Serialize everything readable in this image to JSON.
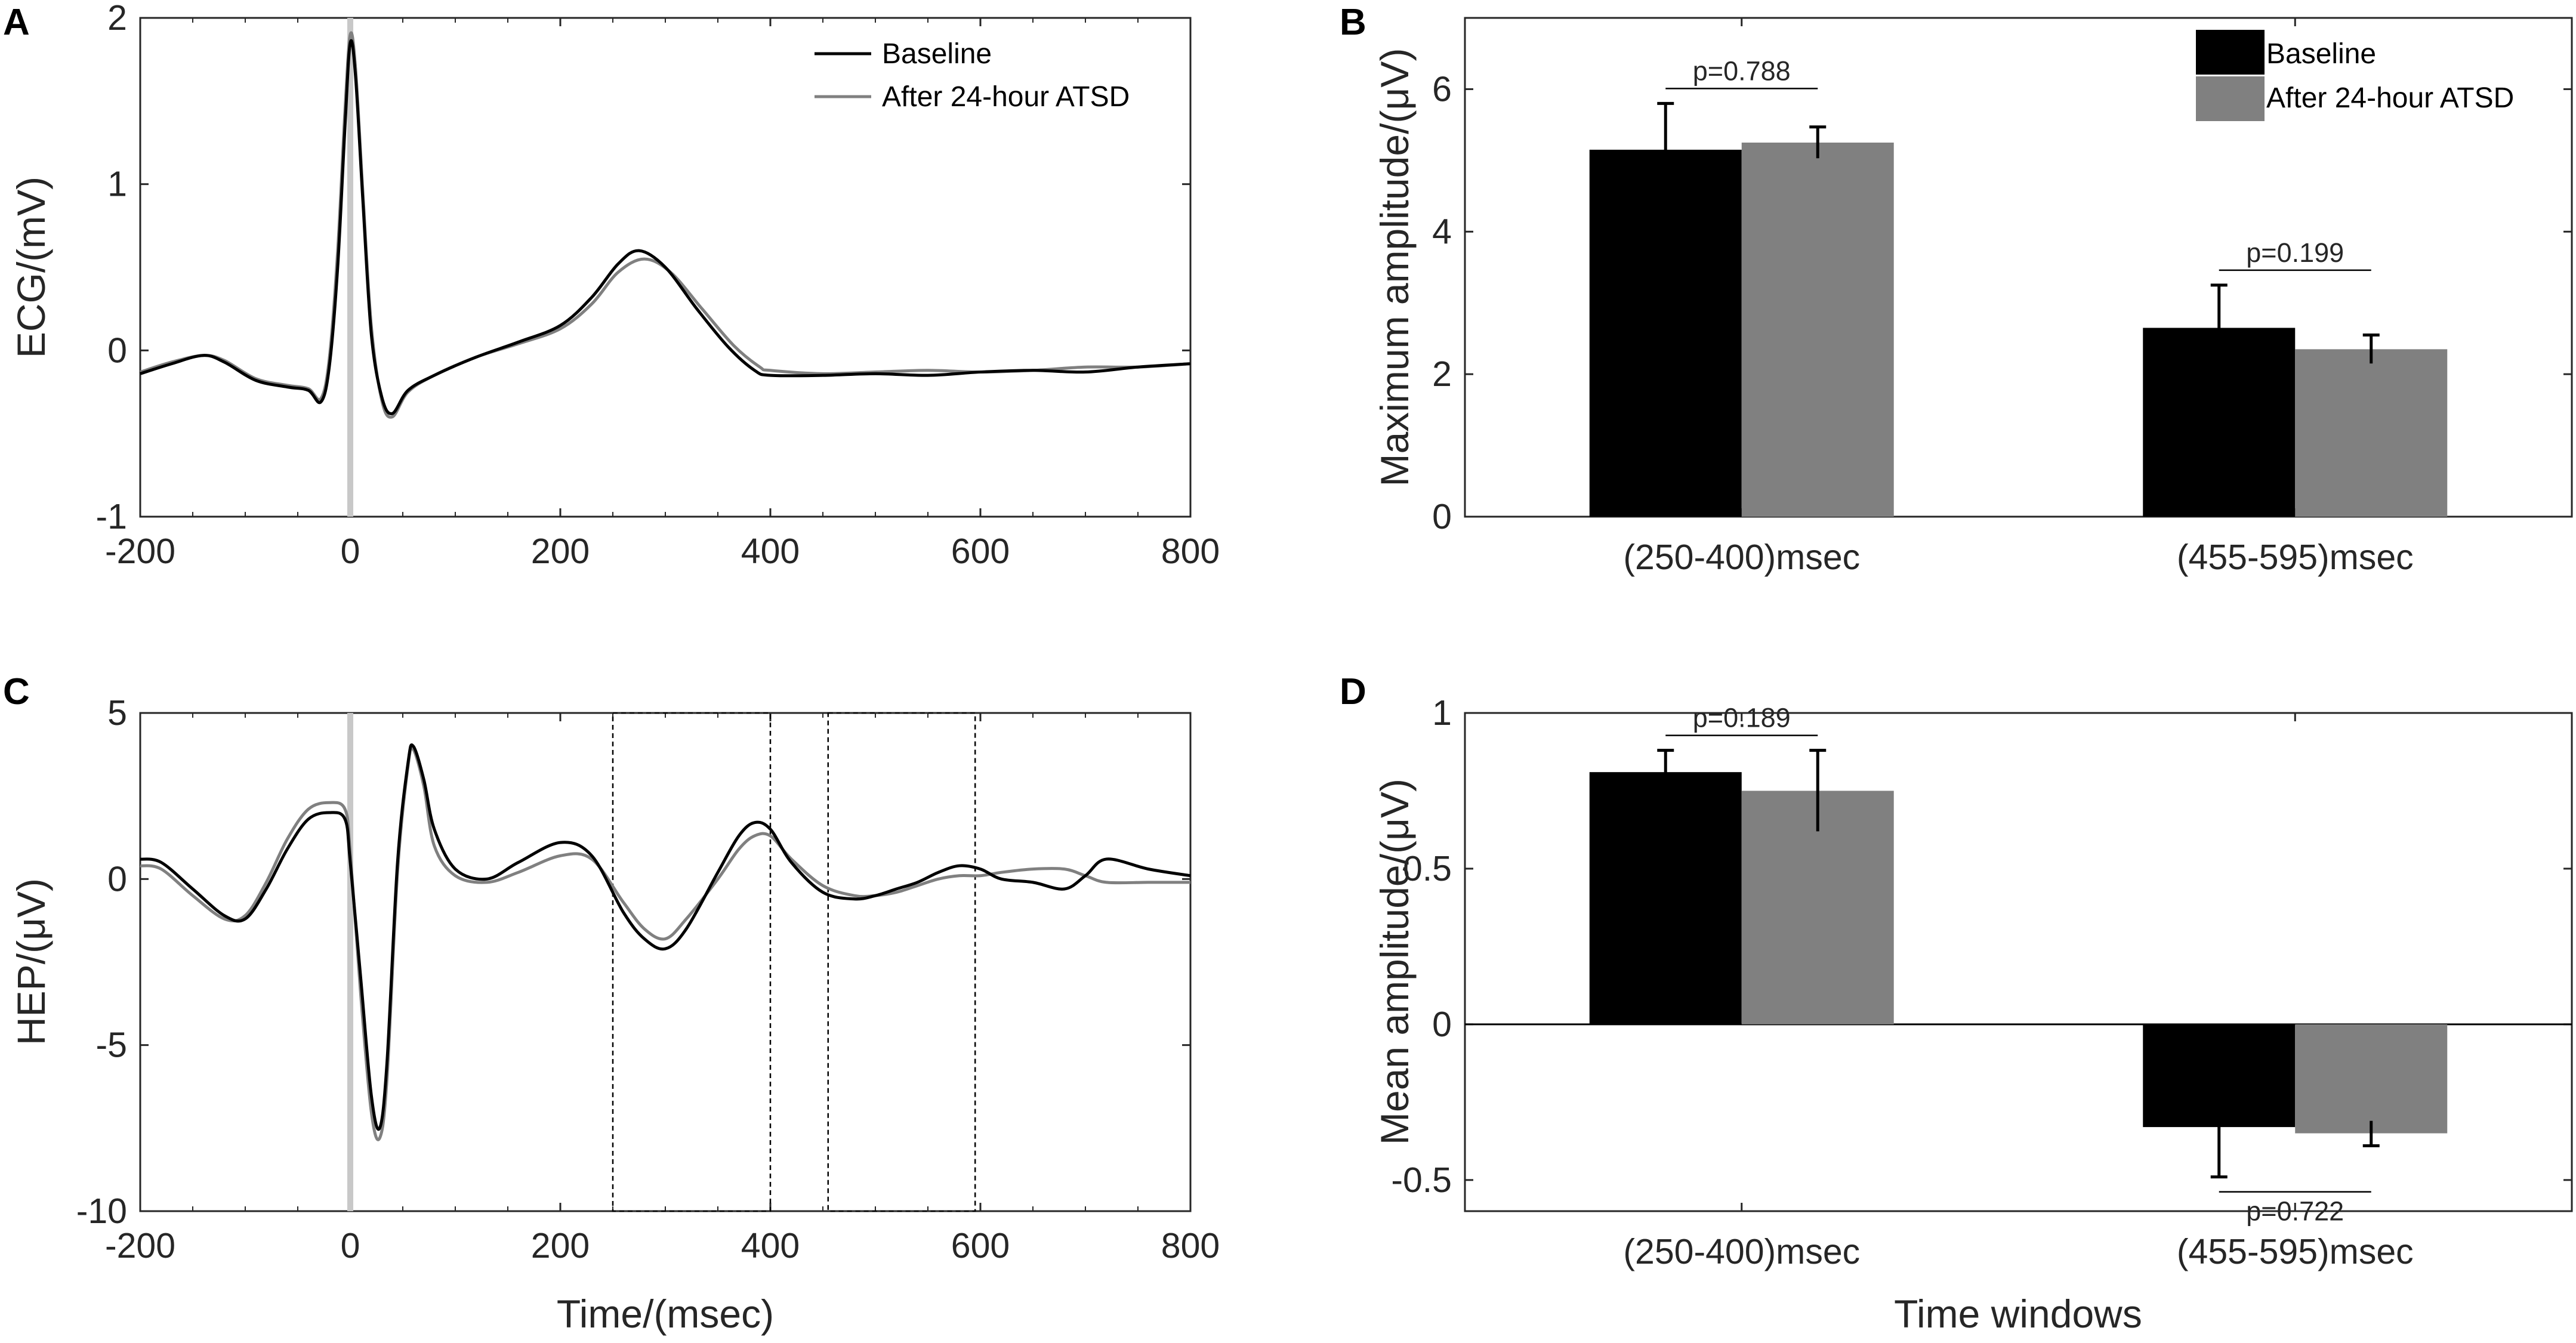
{
  "colors": {
    "baseline": "#000000",
    "after": "#808080",
    "axis": "#262626",
    "marker": "#c8c8c8"
  },
  "legend": {
    "baseline": "Baseline",
    "after": "After 24-hour ATSD"
  },
  "chart_data": [
    {
      "panel": "A",
      "type": "line",
      "ylabel": "ECG/(mV)",
      "xlabel": "",
      "xlim": [
        -200,
        800
      ],
      "ylim": [
        -1,
        2
      ],
      "xticks": [
        "-200",
        "0",
        "200",
        "400",
        "600",
        "800"
      ],
      "yticks": [
        "-1",
        "0",
        "1",
        "2"
      ],
      "xtick_values": [
        -200,
        0,
        200,
        400,
        600,
        800
      ],
      "ytick_values": [
        -1,
        0,
        1,
        2
      ],
      "series": [
        {
          "name": "Baseline",
          "key": "baseline",
          "x": [
            -200,
            -170,
            -140,
            -120,
            -90,
            -60,
            -40,
            -28,
            -20,
            -12,
            -5,
            0,
            5,
            12,
            20,
            30,
            40,
            55,
            80,
            120,
            160,
            200,
            230,
            255,
            275,
            300,
            330,
            360,
            385,
            400,
            450,
            500,
            550,
            600,
            650,
            700,
            750,
            800
          ],
          "y": [
            -0.14,
            -0.08,
            -0.03,
            -0.07,
            -0.18,
            -0.22,
            -0.24,
            -0.31,
            -0.1,
            0.5,
            1.35,
            1.85,
            1.65,
            0.9,
            0.1,
            -0.28,
            -0.38,
            -0.24,
            -0.15,
            -0.04,
            0.05,
            0.15,
            0.32,
            0.52,
            0.6,
            0.5,
            0.25,
            0.02,
            -0.12,
            -0.15,
            -0.15,
            -0.14,
            -0.15,
            -0.13,
            -0.12,
            -0.13,
            -0.1,
            -0.08
          ]
        },
        {
          "name": "After 24-hour ATSD",
          "key": "after",
          "x": [
            -200,
            -170,
            -140,
            -120,
            -90,
            -60,
            -40,
            -28,
            -20,
            -12,
            -5,
            0,
            5,
            12,
            20,
            30,
            40,
            55,
            80,
            120,
            160,
            200,
            230,
            255,
            280,
            305,
            335,
            365,
            390,
            400,
            450,
            500,
            550,
            600,
            650,
            700,
            750,
            800
          ],
          "y": [
            -0.13,
            -0.07,
            -0.03,
            -0.06,
            -0.17,
            -0.21,
            -0.23,
            -0.29,
            -0.05,
            0.6,
            1.45,
            1.9,
            1.7,
            0.95,
            0.15,
            -0.3,
            -0.4,
            -0.25,
            -0.15,
            -0.04,
            0.04,
            0.13,
            0.28,
            0.47,
            0.55,
            0.47,
            0.25,
            0.03,
            -0.1,
            -0.12,
            -0.14,
            -0.13,
            -0.12,
            -0.13,
            -0.12,
            -0.1,
            -0.1,
            -0.08
          ]
        }
      ],
      "markers": [
        0
      ],
      "legend_position": "top-right"
    },
    {
      "panel": "B",
      "type": "bar",
      "ylabel": "Maximum amplitude/(μV)",
      "xlabel": "",
      "ylim": [
        0,
        7
      ],
      "yticks": [
        "0",
        "2",
        "4",
        "6"
      ],
      "ytick_values": [
        0,
        2,
        4,
        6
      ],
      "categories": [
        "(250-400)msec",
        "(455-595)msec"
      ],
      "series": [
        {
          "name": "Baseline",
          "key": "baseline",
          "values": [
            5.15,
            2.65
          ],
          "errors": [
            0.65,
            0.6
          ]
        },
        {
          "name": "After 24-hour ATSD",
          "key": "after",
          "values": [
            5.25,
            2.35
          ],
          "errors": [
            0.22,
            0.2
          ]
        }
      ],
      "pvalues": [
        "p=0.788",
        "p=0.199"
      ],
      "legend_position": "top-right"
    },
    {
      "panel": "C",
      "type": "line",
      "ylabel": "HEP/(μV)",
      "xlabel": "Time/(msec)",
      "xlim": [
        -200,
        800
      ],
      "ylim": [
        -10,
        5
      ],
      "xticks": [
        "-200",
        "0",
        "200",
        "400",
        "600",
        "800"
      ],
      "yticks": [
        "-10",
        "-5",
        "0",
        "5"
      ],
      "xtick_values": [
        -200,
        0,
        200,
        400,
        600,
        800
      ],
      "ytick_values": [
        -10,
        -5,
        0,
        5
      ],
      "series": [
        {
          "name": "Baseline",
          "key": "baseline",
          "x": [
            -200,
            -180,
            -150,
            -120,
            -100,
            -80,
            -60,
            -40,
            -20,
            -5,
            0,
            10,
            20,
            28,
            35,
            45,
            55,
            60,
            70,
            80,
            100,
            130,
            160,
            200,
            230,
            260,
            280,
            300,
            320,
            350,
            370,
            385,
            400,
            420,
            450,
            480,
            500,
            520,
            540,
            560,
            580,
            600,
            620,
            650,
            680,
            700,
            720,
            760,
            800
          ],
          "y": [
            0.6,
            0.5,
            -0.3,
            -1.1,
            -1.2,
            -0.3,
            0.9,
            1.8,
            2.0,
            1.8,
            0.5,
            -3.0,
            -6.5,
            -7.5,
            -5.5,
            0.5,
            3.5,
            4.0,
            3.0,
            1.5,
            0.3,
            0.0,
            0.5,
            1.1,
            0.7,
            -1.0,
            -1.8,
            -2.1,
            -1.5,
            0.2,
            1.3,
            1.7,
            1.5,
            0.5,
            -0.4,
            -0.6,
            -0.5,
            -0.3,
            -0.1,
            0.2,
            0.4,
            0.3,
            0.0,
            -0.1,
            -0.3,
            0.1,
            0.6,
            0.3,
            0.1
          ]
        },
        {
          "name": "After 24-hour ATSD",
          "key": "after",
          "x": [
            -200,
            -180,
            -150,
            -120,
            -100,
            -80,
            -60,
            -40,
            -20,
            -5,
            0,
            10,
            20,
            28,
            35,
            45,
            55,
            60,
            70,
            80,
            100,
            130,
            160,
            200,
            230,
            260,
            280,
            300,
            320,
            350,
            370,
            385,
            400,
            420,
            450,
            480,
            500,
            520,
            540,
            560,
            580,
            600,
            620,
            650,
            680,
            700,
            720,
            760,
            800
          ],
          "y": [
            0.4,
            0.3,
            -0.5,
            -1.2,
            -1.1,
            -0.1,
            1.2,
            2.1,
            2.3,
            2.1,
            0.8,
            -3.5,
            -7.0,
            -7.8,
            -6.0,
            0.2,
            3.4,
            3.9,
            2.8,
            1.0,
            0.1,
            -0.1,
            0.2,
            0.7,
            0.6,
            -0.7,
            -1.5,
            -1.8,
            -1.2,
            0.0,
            0.9,
            1.3,
            1.3,
            0.6,
            -0.2,
            -0.5,
            -0.5,
            -0.4,
            -0.2,
            0.0,
            0.1,
            0.1,
            0.2,
            0.3,
            0.3,
            0.1,
            -0.1,
            -0.1,
            -0.1
          ]
        }
      ],
      "markers": [
        0
      ],
      "windows": [
        [
          250,
          400
        ],
        [
          455,
          595
        ]
      ]
    },
    {
      "panel": "D",
      "type": "bar",
      "ylabel": "Mean amplitude/(μV)",
      "xlabel": "Time windows",
      "ylim": [
        -0.6,
        1
      ],
      "yticks": [
        "-0.5",
        "0",
        "0.5",
        "1"
      ],
      "ytick_values": [
        -0.5,
        0,
        0.5,
        1
      ],
      "categories": [
        "(250-400)msec",
        "(455-595)msec"
      ],
      "series": [
        {
          "name": "Baseline",
          "key": "baseline",
          "values": [
            0.81,
            -0.33
          ],
          "errors": [
            0.07,
            0.16
          ]
        },
        {
          "name": "After 24-hour ATSD",
          "key": "after",
          "values": [
            0.75,
            -0.35
          ],
          "errors": [
            0.13,
            0.04
          ]
        }
      ],
      "pvalues": [
        "p=0.189",
        "p=0.722"
      ]
    }
  ]
}
